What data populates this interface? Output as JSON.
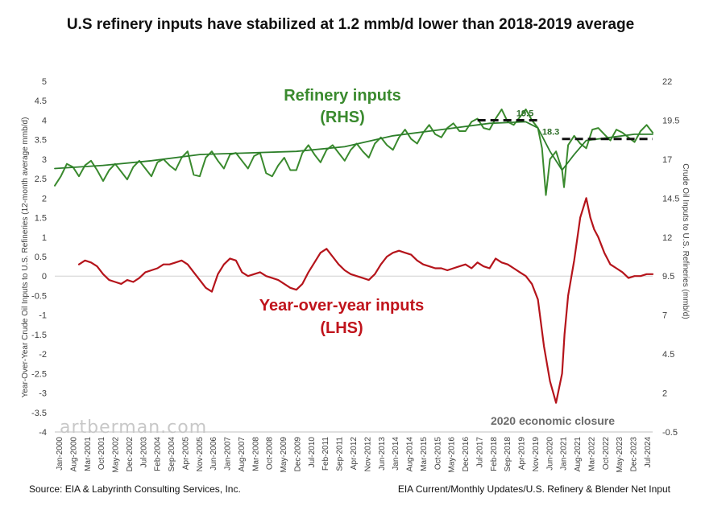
{
  "chart_data": {
    "type": "line",
    "title": "U.S refinery inputs have stabilized at 1.2 mmb/d lower than 2018-2019 average",
    "ylabel_left": "Year-Over-Year Crude Oil Inputs to U.S. Refineries (12-month average mmb/d)",
    "ylabel_right": "Crude Oil Inputs to U.S. Refineries (mmb/d)",
    "left_axis": {
      "min": -4,
      "max": 5,
      "step": 0.5,
      "ticks": [
        "5",
        "4.5",
        "4",
        "3.5",
        "3",
        "2.5",
        "2",
        "1.5",
        "1",
        "0.5",
        "0",
        "-0.5",
        "-1",
        "-1.5",
        "-2",
        "-2.5",
        "-3",
        "-3.5",
        "-4"
      ]
    },
    "right_axis": {
      "min": -0.5,
      "max": 22,
      "step": 2.5,
      "ticks": [
        "22",
        "19.5",
        "17",
        "14.5",
        "12",
        "9.5",
        "7",
        "4.5",
        "2",
        "-0.5"
      ]
    },
    "x_start": 2000.0,
    "x_end": 2024.75,
    "x_ticks": [
      "Jan-2000",
      "Aug-2000",
      "Mar-2001",
      "Oct-2001",
      "May-2002",
      "Dec-2002",
      "Jul-2003",
      "Feb-2004",
      "Sep-2004",
      "Apr-2005",
      "Nov-2005",
      "Jun-2006",
      "Jan-2007",
      "Aug-2007",
      "Mar-2008",
      "Oct-2008",
      "May-2009",
      "Dec-2009",
      "Jul-2010",
      "Feb-2011",
      "Sep-2011",
      "Apr-2012",
      "Nov-2012",
      "Jun-2013",
      "Jan-2014",
      "Aug-2014",
      "Mar-2015",
      "Oct-2015",
      "May-2016",
      "Dec-2016",
      "Jul-2017",
      "Feb-2018",
      "Sep-2018",
      "Apr-2019",
      "Nov-2019",
      "Jun-2020",
      "Jan-2021",
      "Aug-2021",
      "Mar-2022",
      "Oct-2022",
      "May-2023",
      "Dec-2023",
      "Jul-2024"
    ],
    "series": [
      {
        "name": "Refinery inputs",
        "axis": "right",
        "color": "#3a8a2e",
        "x": [
          2000.0,
          2000.25,
          2000.5,
          2000.75,
          2001.0,
          2001.25,
          2001.5,
          2001.75,
          2002.0,
          2002.25,
          2002.5,
          2002.75,
          2003.0,
          2003.25,
          2003.5,
          2003.75,
          2004.0,
          2004.25,
          2004.5,
          2004.75,
          2005.0,
          2005.25,
          2005.5,
          2005.75,
          2006.0,
          2006.25,
          2006.5,
          2006.75,
          2007.0,
          2007.25,
          2007.5,
          2007.75,
          2008.0,
          2008.25,
          2008.5,
          2008.75,
          2009.0,
          2009.25,
          2009.5,
          2009.75,
          2010.0,
          2010.25,
          2010.5,
          2010.75,
          2011.0,
          2011.25,
          2011.5,
          2011.75,
          2012.0,
          2012.25,
          2012.5,
          2012.75,
          2013.0,
          2013.25,
          2013.5,
          2013.75,
          2014.0,
          2014.25,
          2014.5,
          2014.75,
          2015.0,
          2015.25,
          2015.5,
          2015.75,
          2016.0,
          2016.25,
          2016.5,
          2016.75,
          2017.0,
          2017.25,
          2017.5,
          2017.75,
          2018.0,
          2018.25,
          2018.5,
          2018.75,
          2019.0,
          2019.25,
          2019.5,
          2019.75,
          2020.0,
          2020.17,
          2020.33,
          2020.5,
          2020.75,
          2021.0,
          2021.08,
          2021.25,
          2021.5,
          2021.75,
          2022.0,
          2022.25,
          2022.5,
          2022.75,
          2023.0,
          2023.25,
          2023.5,
          2023.75,
          2024.0,
          2024.25,
          2024.5,
          2024.75
        ],
        "values": [
          15.3,
          15.9,
          16.7,
          16.5,
          15.9,
          16.6,
          16.9,
          16.3,
          15.6,
          16.3,
          16.7,
          16.2,
          15.7,
          16.5,
          16.9,
          16.4,
          15.9,
          16.8,
          17.0,
          16.6,
          16.3,
          17.1,
          17.5,
          16.0,
          15.9,
          17.1,
          17.5,
          16.9,
          16.4,
          17.3,
          17.4,
          16.9,
          16.4,
          17.2,
          17.4,
          16.1,
          15.9,
          16.6,
          17.1,
          16.3,
          16.3,
          17.4,
          17.9,
          17.3,
          16.8,
          17.6,
          17.9,
          17.4,
          16.9,
          17.6,
          18.0,
          17.5,
          17.1,
          18.0,
          18.4,
          17.9,
          17.6,
          18.4,
          18.9,
          18.3,
          18.0,
          18.7,
          19.2,
          18.6,
          18.4,
          19.0,
          19.3,
          18.8,
          18.8,
          19.4,
          19.6,
          19.0,
          18.9,
          19.6,
          20.2,
          19.4,
          19.2,
          19.7,
          20.2,
          19.5,
          19.0,
          17.7,
          14.7,
          17.0,
          17.5,
          16.3,
          15.2,
          17.9,
          18.5,
          18.0,
          17.7,
          18.9,
          19.0,
          18.6,
          18.2,
          18.9,
          18.7,
          18.4,
          18.1,
          18.8,
          19.2,
          18.7
        ]
      },
      {
        "name": "Refinery inputs (trend)",
        "axis": "right",
        "color": "#2d7f2a",
        "x": [
          2000.0,
          2002.0,
          2004.0,
          2006.0,
          2008.0,
          2010.0,
          2012.0,
          2014.0,
          2016.0,
          2018.0,
          2019.5,
          2020.0,
          2020.5,
          2021.0,
          2021.5,
          2022.0,
          2023.0,
          2024.0,
          2024.75
        ],
        "values": [
          16.4,
          16.6,
          16.9,
          17.3,
          17.4,
          17.5,
          17.8,
          18.5,
          18.9,
          19.3,
          19.4,
          19.0,
          17.5,
          16.3,
          17.3,
          18.2,
          18.4,
          18.6,
          18.6
        ]
      },
      {
        "name": "Year-over-year inputs",
        "axis": "left",
        "color": "#b5141b",
        "x": [
          2001.0,
          2001.25,
          2001.5,
          2001.75,
          2002.0,
          2002.25,
          2002.5,
          2002.75,
          2003.0,
          2003.25,
          2003.5,
          2003.75,
          2004.0,
          2004.25,
          2004.5,
          2004.75,
          2005.0,
          2005.25,
          2005.5,
          2005.75,
          2006.0,
          2006.25,
          2006.5,
          2006.75,
          2007.0,
          2007.25,
          2007.5,
          2007.75,
          2008.0,
          2008.25,
          2008.5,
          2008.75,
          2009.0,
          2009.25,
          2009.5,
          2009.75,
          2010.0,
          2010.25,
          2010.5,
          2010.75,
          2011.0,
          2011.25,
          2011.5,
          2011.75,
          2012.0,
          2012.25,
          2012.5,
          2012.75,
          2013.0,
          2013.25,
          2013.5,
          2013.75,
          2014.0,
          2014.25,
          2014.5,
          2014.75,
          2015.0,
          2015.25,
          2015.5,
          2015.75,
          2016.0,
          2016.25,
          2016.5,
          2016.75,
          2017.0,
          2017.25,
          2017.5,
          2017.75,
          2018.0,
          2018.25,
          2018.5,
          2018.75,
          2019.0,
          2019.25,
          2019.5,
          2019.75,
          2020.0,
          2020.25,
          2020.5,
          2020.75,
          2021.0,
          2021.1,
          2021.25,
          2021.5,
          2021.75,
          2022.0,
          2022.17,
          2022.33,
          2022.5,
          2022.75,
          2023.0,
          2023.25,
          2023.5,
          2023.75,
          2024.0,
          2024.25,
          2024.5,
          2024.75
        ],
        "values": [
          0.3,
          0.4,
          0.35,
          0.25,
          0.05,
          -0.1,
          -0.15,
          -0.2,
          -0.1,
          -0.15,
          -0.05,
          0.1,
          0.15,
          0.2,
          0.3,
          0.3,
          0.35,
          0.4,
          0.3,
          0.1,
          -0.1,
          -0.3,
          -0.4,
          0.05,
          0.3,
          0.45,
          0.4,
          0.1,
          0.0,
          0.05,
          0.1,
          0.0,
          -0.05,
          -0.1,
          -0.2,
          -0.3,
          -0.35,
          -0.2,
          0.1,
          0.35,
          0.6,
          0.7,
          0.5,
          0.3,
          0.15,
          0.05,
          0.0,
          -0.05,
          -0.1,
          0.05,
          0.3,
          0.5,
          0.6,
          0.65,
          0.6,
          0.55,
          0.4,
          0.3,
          0.25,
          0.2,
          0.2,
          0.15,
          0.2,
          0.25,
          0.3,
          0.2,
          0.35,
          0.25,
          0.2,
          0.45,
          0.35,
          0.3,
          0.2,
          0.1,
          0.0,
          -0.2,
          -0.6,
          -1.8,
          -2.7,
          -3.25,
          -2.5,
          -1.5,
          -0.5,
          0.4,
          1.5,
          2.0,
          1.5,
          1.2,
          1.0,
          0.6,
          0.3,
          0.2,
          0.1,
          -0.05,
          0.0,
          0.0,
          0.05,
          0.05
        ]
      }
    ],
    "reference_lines": [
      {
        "axis": "right",
        "value": 19.5,
        "x_from": 2017.5,
        "x_to": 2020.0,
        "label": "19.5"
      },
      {
        "axis": "right",
        "value": 18.3,
        "x_from": 2021.0,
        "x_to": 2024.75,
        "label": "18.3"
      }
    ],
    "annotations": {
      "refinery_line1": "Refinery inputs",
      "refinery_line2": "(RHS)",
      "yoy_line1": "Year-over-year inputs",
      "yoy_line2": "(LHS)",
      "closure": "2020 economic closure"
    },
    "watermark": "artberman.com",
    "source_left": "Source: EIA & Labyrinth Consulting Services, Inc.",
    "source_right": "EIA Current/Monthly Updates/U.S. Refinery & Blender Net Input"
  }
}
